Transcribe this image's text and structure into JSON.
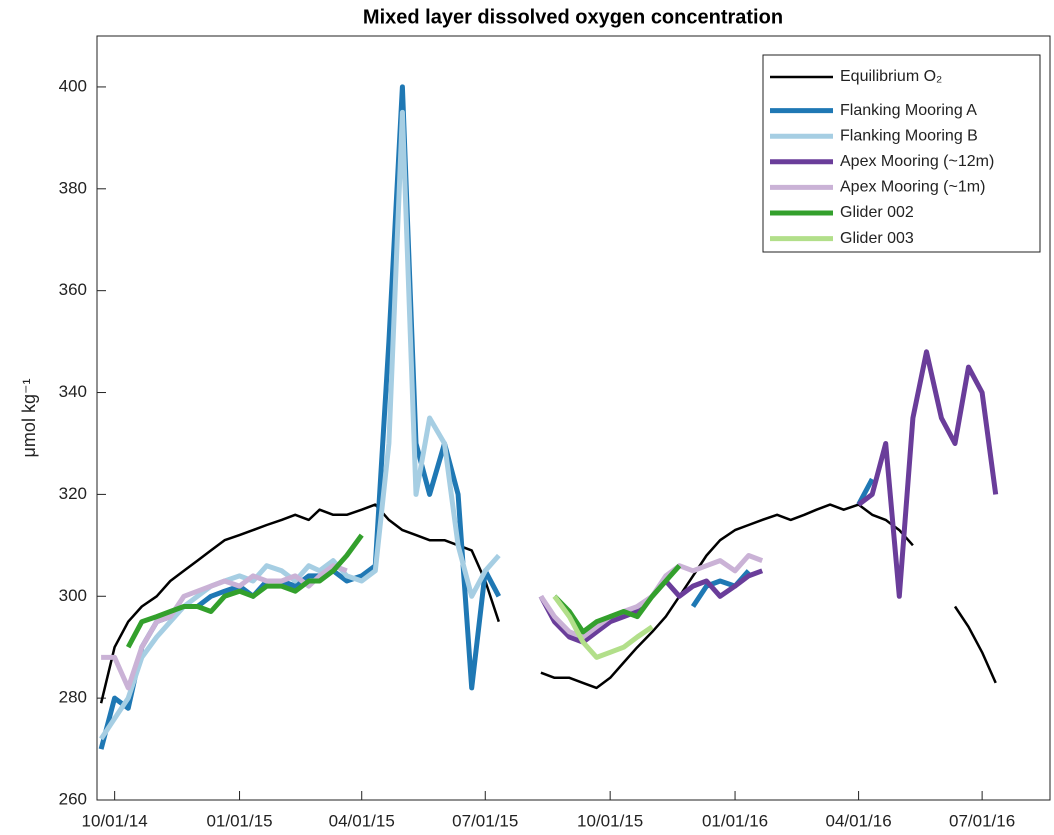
{
  "chart_data": {
    "type": "line",
    "title": "Mixed layer dissolved oxygen concentration",
    "ylabel": "μmol kg⁻¹",
    "x": [
      "2014-09-21",
      "2014-10-01",
      "2014-10-11",
      "2014-10-21",
      "2014-11-01",
      "2014-11-11",
      "2014-11-21",
      "2014-12-01",
      "2014-12-11",
      "2014-12-21",
      "2015-01-01",
      "2015-01-11",
      "2015-01-21",
      "2015-02-01",
      "2015-02-11",
      "2015-02-21",
      "2015-03-01",
      "2015-03-11",
      "2015-03-21",
      "2015-04-01",
      "2015-04-11",
      "2015-04-21",
      "2015-05-01",
      "2015-05-11",
      "2015-05-21",
      "2015-06-01",
      "2015-06-11",
      "2015-06-21",
      "2015-07-01",
      "2015-07-11",
      "2015-07-21",
      "2015-08-01",
      "2015-08-11",
      "2015-08-21",
      "2015-09-01",
      "2015-09-11",
      "2015-09-21",
      "2015-10-01",
      "2015-10-11",
      "2015-10-21",
      "2015-11-01",
      "2015-11-11",
      "2015-11-21",
      "2015-12-01",
      "2015-12-11",
      "2015-12-21",
      "2016-01-01",
      "2016-01-11",
      "2016-01-21",
      "2016-02-01",
      "2016-02-11",
      "2016-02-21",
      "2016-03-01",
      "2016-03-11",
      "2016-03-21",
      "2016-04-01",
      "2016-04-11",
      "2016-04-21",
      "2016-05-01",
      "2016-05-11",
      "2016-05-21",
      "2016-06-01",
      "2016-06-11",
      "2016-06-21",
      "2016-07-01",
      "2016-07-11"
    ],
    "series": [
      {
        "name": "Equilibrium O₂",
        "color": "#000000",
        "values": [
          279,
          290,
          295,
          298,
          300,
          303,
          305,
          307,
          309,
          311,
          312,
          313,
          314,
          315,
          316,
          315,
          317,
          316,
          316,
          317,
          318,
          315,
          313,
          312,
          311,
          311,
          310,
          309,
          303,
          295,
          null,
          null,
          285,
          284,
          284,
          283,
          282,
          284,
          287,
          290,
          293,
          296,
          300,
          304,
          308,
          311,
          313,
          314,
          315,
          316,
          315,
          316,
          317,
          318,
          317,
          318,
          316,
          315,
          313,
          310,
          null,
          null,
          298,
          294,
          289,
          283
        ]
      },
      {
        "name": "Flanking Mooring A",
        "color": "#1f78b4",
        "values": [
          270,
          280,
          278,
          290,
          295,
          296,
          298,
          298,
          300,
          301,
          302,
          300,
          303,
          303,
          302,
          304,
          304,
          305,
          303,
          304,
          306,
          350,
          400,
          330,
          320,
          330,
          320,
          282,
          305,
          300,
          null,
          null,
          null,
          null,
          null,
          null,
          null,
          null,
          null,
          null,
          null,
          null,
          null,
          298,
          302,
          303,
          302,
          305,
          null,
          null,
          null,
          null,
          null,
          null,
          null,
          318,
          323,
          null,
          null,
          null,
          null,
          null,
          null,
          null,
          null,
          null
        ]
      },
      {
        "name": "Flanking Mooring B",
        "color": "#a6cee3",
        "values": [
          272,
          276,
          280,
          288,
          292,
          295,
          298,
          300,
          302,
          303,
          304,
          303,
          306,
          305,
          303,
          306,
          305,
          307,
          304,
          303,
          305,
          330,
          395,
          320,
          335,
          330,
          310,
          300,
          305,
          308,
          null,
          null,
          null,
          null,
          null,
          null,
          null,
          null,
          null,
          null,
          null,
          null,
          null,
          null,
          null,
          null,
          null,
          null,
          null,
          null,
          null,
          null,
          null,
          null,
          null,
          null,
          null,
          null,
          null,
          null,
          null,
          null,
          null,
          null,
          null,
          null
        ]
      },
      {
        "name": "Apex Mooring (~12m)",
        "color": "#6a3d9a",
        "values": [
          null,
          null,
          null,
          null,
          null,
          null,
          null,
          null,
          null,
          null,
          null,
          null,
          null,
          null,
          null,
          null,
          null,
          null,
          null,
          null,
          null,
          null,
          null,
          null,
          null,
          null,
          null,
          null,
          null,
          null,
          null,
          null,
          300,
          295,
          292,
          291,
          293,
          295,
          296,
          297,
          300,
          303,
          300,
          302,
          303,
          300,
          302,
          304,
          305,
          null,
          null,
          null,
          null,
          null,
          null,
          318,
          320,
          330,
          300,
          335,
          348,
          335,
          330,
          345,
          340,
          320
        ]
      },
      {
        "name": "Apex Mooring (~1m)",
        "color": "#cab2d6",
        "values": [
          288,
          288,
          282,
          290,
          295,
          296,
          300,
          301,
          302,
          303,
          302,
          304,
          303,
          303,
          304,
          302,
          304,
          306,
          305,
          null,
          null,
          null,
          null,
          null,
          null,
          null,
          null,
          null,
          null,
          null,
          null,
          null,
          300,
          296,
          293,
          292,
          294,
          296,
          297,
          298,
          300,
          304,
          306,
          305,
          306,
          307,
          305,
          308,
          307,
          null,
          null,
          null,
          null,
          null,
          null,
          null,
          null,
          null,
          null,
          null,
          null,
          null,
          null,
          null,
          null,
          null
        ]
      },
      {
        "name": "Glider 002",
        "color": "#33a02c",
        "values": [
          null,
          null,
          290,
          295,
          296,
          297,
          298,
          298,
          297,
          300,
          301,
          300,
          302,
          302,
          301,
          303,
          303,
          305,
          308,
          312,
          null,
          null,
          null,
          null,
          null,
          null,
          null,
          null,
          null,
          null,
          null,
          null,
          null,
          300,
          297,
          293,
          295,
          296,
          297,
          296,
          300,
          303,
          306,
          null,
          null,
          null,
          null,
          null,
          null,
          null,
          null,
          null,
          null,
          null,
          null,
          null,
          null,
          null,
          null,
          null,
          null,
          null,
          null,
          null,
          null,
          null
        ]
      },
      {
        "name": "Glider 003",
        "color": "#b2df8a",
        "values": [
          null,
          null,
          null,
          null,
          null,
          null,
          null,
          null,
          null,
          null,
          null,
          null,
          null,
          null,
          null,
          null,
          null,
          null,
          null,
          null,
          null,
          null,
          null,
          null,
          null,
          null,
          null,
          null,
          null,
          null,
          null,
          null,
          null,
          300,
          296,
          291,
          288,
          289,
          290,
          292,
          294,
          null,
          null,
          null,
          null,
          null,
          null,
          null,
          null,
          null,
          null,
          null,
          null,
          null,
          null,
          null,
          null,
          null,
          null,
          null,
          null,
          null,
          null,
          null,
          null,
          null
        ]
      }
    ],
    "xlim": [
      "2014-09-18",
      "2016-08-20"
    ],
    "xticks": [
      {
        "value": "2014-10-01",
        "label": "10/01/14"
      },
      {
        "value": "2015-01-01",
        "label": "01/01/15"
      },
      {
        "value": "2015-04-01",
        "label": "04/01/15"
      },
      {
        "value": "2015-07-01",
        "label": "07/01/15"
      },
      {
        "value": "2015-10-01",
        "label": "10/01/15"
      },
      {
        "value": "2016-01-01",
        "label": "01/01/16"
      },
      {
        "value": "2016-04-01",
        "label": "04/01/16"
      },
      {
        "value": "2016-07-01",
        "label": "07/01/16"
      }
    ],
    "ylim": [
      260,
      410
    ],
    "yticks": [
      260,
      280,
      300,
      320,
      340,
      360,
      380,
      400
    ],
    "legend": "upper right"
  }
}
